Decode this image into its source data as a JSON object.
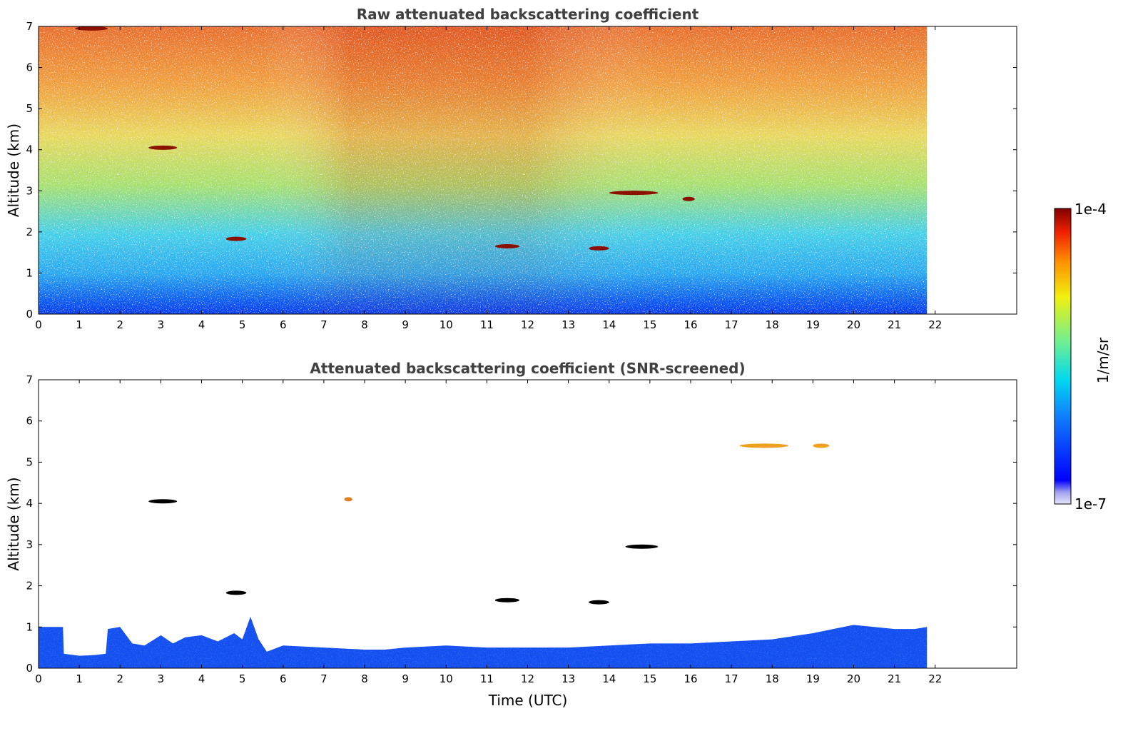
{
  "chart_data": [
    {
      "type": "heatmap",
      "title": "Raw attenuated backscattering coefficient",
      "xlabel": "",
      "ylabel": "Altitude (km)",
      "xlim": [
        0,
        24
      ],
      "ylim": [
        0,
        7
      ],
      "xticks": [
        0,
        1,
        2,
        3,
        4,
        5,
        6,
        7,
        8,
        9,
        10,
        11,
        12,
        13,
        14,
        15,
        16,
        17,
        18,
        19,
        20,
        21,
        22
      ],
      "yticks": [
        0,
        1,
        2,
        3,
        4,
        5,
        6,
        7
      ],
      "data_end_time": 21.8,
      "grid": false,
      "description_of_field": "noisy backscatter field, blue near surface increasing to yellow/red above 4 km",
      "features": [
        {
          "label": "cloud",
          "time_start": 0.9,
          "time_end": 1.7,
          "altitude": 6.95
        },
        {
          "label": "cloud",
          "time_start": 2.7,
          "time_end": 3.4,
          "altitude": 4.05
        },
        {
          "label": "cloud",
          "time_start": 4.6,
          "time_end": 5.1,
          "altitude": 1.83
        },
        {
          "label": "cloud",
          "time_start": 11.2,
          "time_end": 11.8,
          "altitude": 1.65
        },
        {
          "label": "cloud",
          "time_start": 13.5,
          "time_end": 14.0,
          "altitude": 1.6
        },
        {
          "label": "cloud",
          "time_start": 14.0,
          "time_end": 15.2,
          "altitude": 2.95
        },
        {
          "label": "cloud",
          "time_start": 15.8,
          "time_end": 16.1,
          "altitude": 2.8
        }
      ]
    },
    {
      "type": "heatmap",
      "title": "Attenuated backscattering coefficient (SNR-screened)",
      "xlabel": "Time (UTC)",
      "ylabel": "Altitude (km)",
      "xlim": [
        0,
        24
      ],
      "ylim": [
        0,
        7
      ],
      "xticks": [
        0,
        1,
        2,
        3,
        4,
        5,
        6,
        7,
        8,
        9,
        10,
        11,
        12,
        13,
        14,
        15,
        16,
        17,
        18,
        19,
        20,
        21,
        22
      ],
      "yticks": [
        0,
        1,
        2,
        3,
        4,
        5,
        6,
        7
      ],
      "data_end_time": 21.8,
      "grid": false,
      "boundary_layer_top": {
        "time": [
          0,
          0.6,
          0.62,
          1.0,
          1.4,
          1.65,
          1.7,
          2.0,
          2.3,
          2.6,
          3.0,
          3.3,
          3.6,
          4.0,
          4.4,
          4.8,
          5.0,
          5.2,
          5.4,
          5.6,
          6.0,
          7.0,
          8.0,
          8.5,
          9.0,
          10.0,
          11.0,
          12.0,
          13.0,
          14.0,
          15.0,
          16.0,
          17.0,
          18.0,
          19.0,
          19.5,
          20.0,
          20.5,
          21.0,
          21.5,
          21.8
        ],
        "altitude": [
          1.0,
          1.0,
          0.35,
          0.3,
          0.32,
          0.35,
          0.95,
          1.0,
          0.6,
          0.55,
          0.8,
          0.6,
          0.75,
          0.8,
          0.65,
          0.85,
          0.7,
          1.25,
          0.7,
          0.4,
          0.55,
          0.5,
          0.45,
          0.45,
          0.5,
          0.55,
          0.5,
          0.5,
          0.5,
          0.55,
          0.6,
          0.6,
          0.65,
          0.7,
          0.85,
          0.95,
          1.05,
          1.0,
          0.95,
          0.95,
          1.0
        ]
      },
      "features": [
        {
          "label": "cloud",
          "time_start": 2.7,
          "time_end": 3.4,
          "altitude": 4.05
        },
        {
          "label": "cloud",
          "time_start": 4.6,
          "time_end": 5.1,
          "altitude": 1.83
        },
        {
          "label": "cloud",
          "time_start": 7.5,
          "time_end": 7.7,
          "altitude": 4.1
        },
        {
          "label": "cloud",
          "time_start": 11.2,
          "time_end": 11.8,
          "altitude": 1.65
        },
        {
          "label": "cloud",
          "time_start": 13.5,
          "time_end": 14.0,
          "altitude": 1.6
        },
        {
          "label": "cloud",
          "time_start": 14.4,
          "time_end": 15.2,
          "altitude": 2.95
        },
        {
          "label": "cloud",
          "time_start": 17.2,
          "time_end": 18.4,
          "altitude": 5.4
        },
        {
          "label": "cloud",
          "time_start": 19.0,
          "time_end": 19.4,
          "altitude": 5.4
        }
      ]
    }
  ],
  "colorbar": {
    "label": "1/m/sr",
    "min_label": "1e-7",
    "max_label": "1e-4",
    "colormap": "jet"
  }
}
